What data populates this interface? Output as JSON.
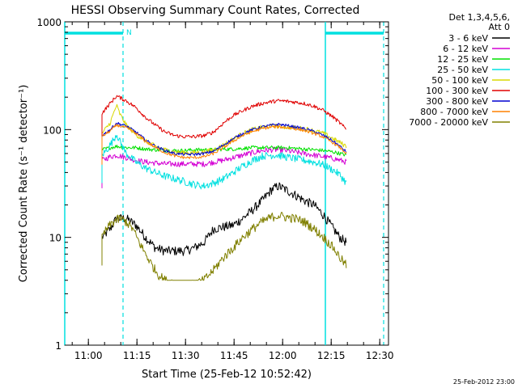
{
  "chart_data": {
    "type": "line",
    "title": "HESSI Observing Summary Count Rates, Corrected",
    "xlabel": "Start Time (25-Feb-12 10:52:42)",
    "ylabel": "Corrected Count Rate (s⁻¹ detector⁻¹)",
    "yscale": "log",
    "ylim": [
      1,
      1000
    ],
    "xlim_minutes_after_10_52_42": [
      0,
      100
    ],
    "x_tick_labels": [
      "11:00",
      "11:15",
      "11:30",
      "11:45",
      "12:00",
      "12:15",
      "12:30"
    ],
    "y_tick_labels": [
      "1",
      "10",
      "100",
      "1000"
    ],
    "legend_header": [
      "Det 1,3,4,5,6,",
      "Att 0"
    ],
    "timestamp": "25-Feb-2012 23:00",
    "night_marker_label": "N",
    "series": [
      {
        "name": "3 - 6 keV",
        "color": "#000000",
        "points": [
          [
            11.5,
            10
          ],
          [
            14,
            12
          ],
          [
            16,
            15
          ],
          [
            19,
            15
          ],
          [
            22,
            13
          ],
          [
            25,
            10
          ],
          [
            28,
            8
          ],
          [
            31,
            7.5
          ],
          [
            34,
            7.5
          ],
          [
            37,
            7.5
          ],
          [
            40,
            8
          ],
          [
            43,
            9
          ],
          [
            46,
            12
          ],
          [
            49,
            12.5
          ],
          [
            52,
            13
          ],
          [
            55,
            15
          ],
          [
            58,
            18
          ],
          [
            61,
            22
          ],
          [
            64,
            28
          ],
          [
            66,
            30
          ],
          [
            68,
            28
          ],
          [
            71,
            25
          ],
          [
            74,
            22
          ],
          [
            77,
            20
          ],
          [
            80,
            16
          ],
          [
            83,
            12
          ],
          [
            85,
            10
          ],
          [
            87,
            9
          ]
        ]
      },
      {
        "name": "6 - 12 keV",
        "color": "#d400d4",
        "points": [
          [
            11.5,
            52
          ],
          [
            14,
            56
          ],
          [
            16,
            58
          ],
          [
            19,
            55
          ],
          [
            22,
            52
          ],
          [
            25,
            50
          ],
          [
            28,
            49
          ],
          [
            31,
            48
          ],
          [
            34,
            48
          ],
          [
            37,
            48
          ],
          [
            40,
            48
          ],
          [
            43,
            48
          ],
          [
            46,
            50
          ],
          [
            49,
            52
          ],
          [
            52,
            55
          ],
          [
            55,
            58
          ],
          [
            58,
            61
          ],
          [
            61,
            64
          ],
          [
            64,
            65
          ],
          [
            66,
            65
          ],
          [
            68,
            64
          ],
          [
            71,
            62
          ],
          [
            74,
            60
          ],
          [
            77,
            58
          ],
          [
            80,
            56
          ],
          [
            83,
            54
          ],
          [
            85,
            52
          ],
          [
            87,
            50
          ]
        ]
      },
      {
        "name": "12 - 25 keV",
        "color": "#00e000",
        "points": [
          [
            11.5,
            65
          ],
          [
            14,
            68
          ],
          [
            16,
            70
          ],
          [
            19,
            68
          ],
          [
            22,
            68
          ],
          [
            25,
            66
          ],
          [
            28,
            65
          ],
          [
            31,
            64
          ],
          [
            34,
            64
          ],
          [
            37,
            64
          ],
          [
            40,
            65
          ],
          [
            43,
            65
          ],
          [
            46,
            65
          ],
          [
            49,
            66
          ],
          [
            52,
            66
          ],
          [
            55,
            67
          ],
          [
            58,
            68
          ],
          [
            61,
            68
          ],
          [
            64,
            68
          ],
          [
            66,
            68
          ],
          [
            68,
            68
          ],
          [
            71,
            67
          ],
          [
            74,
            66
          ],
          [
            77,
            65
          ],
          [
            80,
            64
          ],
          [
            83,
            62
          ],
          [
            85,
            60
          ],
          [
            87,
            58
          ]
        ]
      },
      {
        "name": "25 - 50 keV",
        "color": "#00e0e0",
        "points": [
          [
            11.5,
            58
          ],
          [
            13,
            65
          ],
          [
            15,
            80
          ],
          [
            16,
            92
          ],
          [
            17,
            78
          ],
          [
            19,
            60
          ],
          [
            22,
            50
          ],
          [
            25,
            44
          ],
          [
            28,
            40
          ],
          [
            31,
            37
          ],
          [
            34,
            35
          ],
          [
            37,
            33
          ],
          [
            40,
            31
          ],
          [
            43,
            30
          ],
          [
            46,
            32
          ],
          [
            49,
            35
          ],
          [
            52,
            40
          ],
          [
            55,
            46
          ],
          [
            58,
            52
          ],
          [
            61,
            57
          ],
          [
            64,
            58
          ],
          [
            66,
            58
          ],
          [
            68,
            56
          ],
          [
            71,
            54
          ],
          [
            74,
            52
          ],
          [
            77,
            50
          ],
          [
            80,
            47
          ],
          [
            83,
            42
          ],
          [
            85,
            38
          ],
          [
            87,
            32
          ]
        ]
      },
      {
        "name": "50 - 100 keV",
        "color": "#d8d800",
        "points": [
          [
            11.5,
            92
          ],
          [
            14,
            115
          ],
          [
            16,
            168
          ],
          [
            17,
            140
          ],
          [
            19,
            110
          ],
          [
            22,
            90
          ],
          [
            25,
            78
          ],
          [
            28,
            70
          ],
          [
            31,
            65
          ],
          [
            34,
            62
          ],
          [
            37,
            61
          ],
          [
            40,
            61
          ],
          [
            43,
            62
          ],
          [
            46,
            65
          ],
          [
            49,
            72
          ],
          [
            52,
            82
          ],
          [
            55,
            92
          ],
          [
            58,
            100
          ],
          [
            61,
            105
          ],
          [
            64,
            108
          ],
          [
            66,
            108
          ],
          [
            68,
            106
          ],
          [
            71,
            104
          ],
          [
            74,
            102
          ],
          [
            77,
            98
          ],
          [
            80,
            92
          ],
          [
            83,
            82
          ],
          [
            85,
            76
          ],
          [
            87,
            70
          ]
        ]
      },
      {
        "name": "100 - 300 keV",
        "color": "#e00000",
        "points": [
          [
            11.5,
            142
          ],
          [
            14,
            175
          ],
          [
            16,
            205
          ],
          [
            19,
            185
          ],
          [
            22,
            160
          ],
          [
            25,
            130
          ],
          [
            28,
            110
          ],
          [
            31,
            95
          ],
          [
            34,
            88
          ],
          [
            37,
            86
          ],
          [
            40,
            86
          ],
          [
            43,
            88
          ],
          [
            46,
            95
          ],
          [
            49,
            115
          ],
          [
            52,
            135
          ],
          [
            55,
            150
          ],
          [
            58,
            165
          ],
          [
            61,
            175
          ],
          [
            64,
            182
          ],
          [
            66,
            185
          ],
          [
            68,
            184
          ],
          [
            71,
            180
          ],
          [
            74,
            175
          ],
          [
            77,
            165
          ],
          [
            80,
            150
          ],
          [
            83,
            130
          ],
          [
            85,
            115
          ],
          [
            87,
            100
          ]
        ]
      },
      {
        "name": "300 - 800 keV",
        "color": "#0000d0",
        "points": [
          [
            11.5,
            88
          ],
          [
            14,
            100
          ],
          [
            16,
            115
          ],
          [
            19,
            108
          ],
          [
            22,
            95
          ],
          [
            25,
            80
          ],
          [
            28,
            70
          ],
          [
            31,
            64
          ],
          [
            34,
            60
          ],
          [
            37,
            59
          ],
          [
            40,
            59
          ],
          [
            43,
            60
          ],
          [
            46,
            63
          ],
          [
            49,
            72
          ],
          [
            52,
            82
          ],
          [
            55,
            92
          ],
          [
            58,
            100
          ],
          [
            61,
            106
          ],
          [
            64,
            110
          ],
          [
            66,
            112
          ],
          [
            68,
            110
          ],
          [
            71,
            106
          ],
          [
            74,
            102
          ],
          [
            77,
            96
          ],
          [
            80,
            88
          ],
          [
            83,
            78
          ],
          [
            85,
            70
          ],
          [
            87,
            62
          ]
        ]
      },
      {
        "name": "800 - 7000 keV",
        "color": "#ff8000",
        "points": [
          [
            11.5,
            86
          ],
          [
            14,
            97
          ],
          [
            16,
            110
          ],
          [
            19,
            104
          ],
          [
            22,
            92
          ],
          [
            25,
            78
          ],
          [
            28,
            68
          ],
          [
            31,
            61
          ],
          [
            34,
            57
          ],
          [
            37,
            55
          ],
          [
            40,
            55
          ],
          [
            43,
            56
          ],
          [
            46,
            60
          ],
          [
            49,
            68
          ],
          [
            52,
            78
          ],
          [
            55,
            88
          ],
          [
            58,
            96
          ],
          [
            61,
            102
          ],
          [
            64,
            106
          ],
          [
            66,
            106
          ],
          [
            68,
            105
          ],
          [
            71,
            102
          ],
          [
            74,
            98
          ],
          [
            77,
            92
          ],
          [
            80,
            85
          ],
          [
            83,
            75
          ],
          [
            85,
            68
          ],
          [
            87,
            60
          ]
        ]
      },
      {
        "name": "7000 - 20000 keV",
        "color": "#808000",
        "points": [
          [
            11.5,
            10
          ],
          [
            13,
            12
          ],
          [
            15,
            14
          ],
          [
            17,
            15
          ],
          [
            19,
            14
          ],
          [
            21,
            12
          ],
          [
            23,
            9
          ],
          [
            25,
            7
          ],
          [
            27,
            5.5
          ],
          [
            29,
            4.5
          ],
          [
            31,
            4
          ],
          [
            34,
            3.8
          ],
          [
            37,
            3.5
          ],
          [
            40,
            3.7
          ],
          [
            43,
            4
          ],
          [
            46,
            5
          ],
          [
            49,
            6.5
          ],
          [
            52,
            8
          ],
          [
            55,
            10
          ],
          [
            58,
            12
          ],
          [
            61,
            14
          ],
          [
            64,
            15.5
          ],
          [
            66,
            16
          ],
          [
            68,
            15.5
          ],
          [
            71,
            15
          ],
          [
            74,
            14
          ],
          [
            77,
            12
          ],
          [
            80,
            10
          ],
          [
            83,
            8
          ],
          [
            85,
            6.5
          ],
          [
            87,
            5.5
          ]
        ]
      }
    ],
    "markers": {
      "solid_vertical_lines_x": [
        0,
        80.5
      ],
      "dashed_vertical_lines_x": [
        18,
        98.5
      ],
      "night_bars": [
        [
          0,
          18
        ],
        [
          80.5,
          98.5
        ]
      ],
      "data_start_x": 11.5,
      "data_end_x": 87.5
    }
  }
}
